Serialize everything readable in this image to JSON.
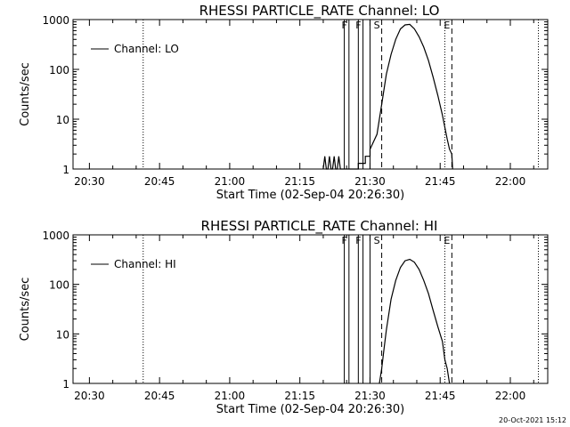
{
  "timestamp": "20-Oct-2021 15:12",
  "chart_data": [
    {
      "type": "line",
      "title": "RHESSI PARTICLE_RATE Channel: LO",
      "xlabel": "Start Time (02-Sep-04 20:26:30)",
      "ylabel": "Counts/sec",
      "x_unit": "minutes",
      "xlim": [
        "20:26:30",
        "22:08:00"
      ],
      "ylim": [
        1,
        1000
      ],
      "y_scale": "log",
      "xticks": [
        "20:30",
        "20:45",
        "21:00",
        "21:15",
        "21:30",
        "21:45",
        "22:00"
      ],
      "yticks": [
        "1",
        "10",
        "100",
        "1000"
      ],
      "legend": {
        "label": "Channel: LO",
        "position": "top-left"
      },
      "dotted_lines": [
        "20:41:30",
        "21:46:00",
        "22:06:00"
      ],
      "flags": [
        {
          "label": "F",
          "time": "21:25:30",
          "style": "solid"
        },
        {
          "label": "F",
          "time": "21:28:30",
          "style": "solid"
        },
        {
          "label": "S",
          "time": "21:32:30",
          "style": "dashed"
        },
        {
          "label": "E",
          "time": "21:47:30",
          "style": "dashed"
        }
      ],
      "solid_bars": [
        "21:24:30",
        "21:27:30",
        "21:30:00"
      ],
      "series": [
        {
          "x": [
            "21:20:00",
            "21:20:20",
            "21:20:40",
            "21:21:00",
            "21:21:20",
            "21:21:40",
            "21:22:00",
            "21:22:20",
            "21:22:40",
            "21:23:00",
            "21:23:20",
            "21:23:40",
            "21:24:00",
            "21:24:30",
            "21:27:30",
            "21:27:30",
            "21:29:00",
            "21:29:00",
            "21:30:00",
            "21:30:00",
            "21:31:30",
            "21:32:30",
            "21:33:30",
            "21:34:30",
            "21:35:30",
            "21:36:30",
            "21:37:30",
            "21:38:30",
            "21:39:30",
            "21:40:30",
            "21:41:30",
            "21:42:30",
            "21:43:30",
            "21:44:30",
            "21:45:30",
            "21:46:30",
            "21:47:00",
            "21:47:30",
            "21:47:40"
          ],
          "y": [
            1,
            1.8,
            1,
            1,
            1.8,
            1,
            1,
            1.8,
            1,
            1,
            1.8,
            1,
            1,
            1,
            1,
            1.3,
            1.3,
            1.8,
            1.8,
            2.5,
            5,
            20,
            80,
            200,
            400,
            650,
            780,
            800,
            650,
            450,
            280,
            150,
            70,
            30,
            12,
            4,
            2.5,
            2,
            1
          ]
        }
      ]
    },
    {
      "type": "line",
      "title": "RHESSI PARTICLE_RATE Channel: HI",
      "xlabel": "Start Time (02-Sep-04 20:26:30)",
      "ylabel": "Counts/sec",
      "x_unit": "minutes",
      "xlim": [
        "20:26:30",
        "22:08:00"
      ],
      "ylim": [
        1,
        1000
      ],
      "y_scale": "log",
      "xticks": [
        "20:30",
        "20:45",
        "21:00",
        "21:15",
        "21:30",
        "21:45",
        "22:00"
      ],
      "yticks": [
        "1",
        "10",
        "100",
        "1000"
      ],
      "legend": {
        "label": "Channel: HI",
        "position": "top-left"
      },
      "dotted_lines": [
        "20:41:30",
        "21:46:00",
        "22:06:00"
      ],
      "flags": [
        {
          "label": "F",
          "time": "21:25:30",
          "style": "solid"
        },
        {
          "label": "F",
          "time": "21:28:30",
          "style": "solid"
        },
        {
          "label": "S",
          "time": "21:32:30",
          "style": "dashed"
        },
        {
          "label": "E",
          "time": "21:47:30",
          "style": "dashed"
        }
      ],
      "solid_bars": [
        "21:24:30",
        "21:27:30",
        "21:30:00"
      ],
      "series": [
        {
          "x": [
            "21:32:00",
            "21:32:30",
            "21:33:00",
            "21:33:30",
            "21:34:30",
            "21:35:30",
            "21:36:30",
            "21:37:30",
            "21:38:30",
            "21:39:30",
            "21:40:30",
            "21:41:30",
            "21:42:30",
            "21:43:30",
            "21:44:30",
            "21:45:30",
            "21:46:00",
            "21:46:30",
            "21:47:00"
          ],
          "y": [
            1,
            2,
            5,
            12,
            50,
            120,
            220,
            300,
            320,
            280,
            200,
            120,
            65,
            30,
            14,
            7,
            3,
            2,
            1
          ]
        }
      ]
    }
  ]
}
